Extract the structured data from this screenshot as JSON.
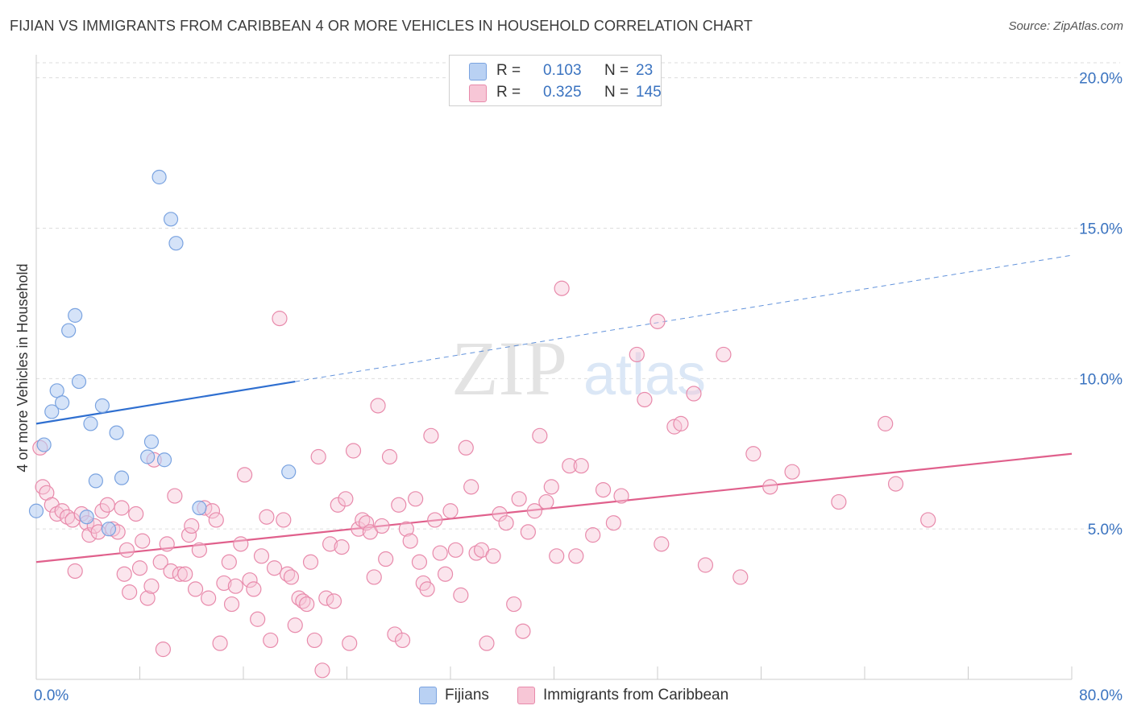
{
  "title": "FIJIAN VS IMMIGRANTS FROM CARIBBEAN 4 OR MORE VEHICLES IN HOUSEHOLD CORRELATION CHART",
  "source": "Source: ZipAtlas.com",
  "watermark": {
    "zip": "ZIP",
    "atlas": "atlas"
  },
  "legend": {
    "rows": [
      {
        "r_label": "R =",
        "r_value": "0.103",
        "n_label": "N =",
        "n_value": "23"
      },
      {
        "r_label": "R =",
        "r_value": "0.325",
        "n_label": "N =",
        "n_value": "145"
      }
    ]
  },
  "bottom_legend": {
    "fijians": "Fijians",
    "caribbean": "Immigrants from Caribbean"
  },
  "colors": {
    "fijian_fill": "#b9d1f3",
    "fijian_stroke": "#7aa3e0",
    "fijian_line": "#2f6fd0",
    "carib_fill": "#f7c6d6",
    "carib_stroke": "#e88aab",
    "carib_line": "#e0608c",
    "tick_text": "#3a73c0",
    "grid": "#dddddd"
  },
  "chart_data": {
    "type": "scatter",
    "title": "FIJIAN VS IMMIGRANTS FROM CARIBBEAN 4 OR MORE VEHICLES IN HOUSEHOLD CORRELATION CHART",
    "xlabel": "",
    "ylabel": "4 or more Vehicles in Household",
    "xlim": [
      0,
      80
    ],
    "ylim": [
      0,
      20.5
    ],
    "x_tick_labels": [
      "0.0%",
      "80.0%"
    ],
    "y_ticks": [
      {
        "value": 5,
        "label": "5.0%"
      },
      {
        "value": 10,
        "label": "10.0%"
      },
      {
        "value": 15,
        "label": "15.0%"
      },
      {
        "value": 20,
        "label": "20.0%"
      }
    ],
    "grid": true,
    "series": [
      {
        "name": "Fijians",
        "r": 0.103,
        "n": 23,
        "trend": {
          "x0": 0,
          "y0": 8.5,
          "x1": 20,
          "y1": 9.9,
          "x_dash_end": 80,
          "y_dash_end": 14.1
        },
        "points": [
          [
            0.0,
            5.6
          ],
          [
            0.6,
            7.8
          ],
          [
            1.2,
            8.9
          ],
          [
            1.6,
            9.6
          ],
          [
            2.0,
            9.2
          ],
          [
            2.5,
            11.6
          ],
          [
            3.0,
            12.1
          ],
          [
            3.3,
            9.9
          ],
          [
            4.2,
            8.5
          ],
          [
            4.6,
            6.6
          ],
          [
            5.1,
            9.1
          ],
          [
            3.9,
            5.4
          ],
          [
            6.2,
            8.2
          ],
          [
            5.6,
            5.0
          ],
          [
            6.6,
            6.7
          ],
          [
            8.6,
            7.4
          ],
          [
            8.9,
            7.9
          ],
          [
            9.5,
            16.7
          ],
          [
            9.9,
            7.3
          ],
          [
            10.4,
            15.3
          ],
          [
            10.8,
            14.5
          ],
          [
            12.6,
            5.7
          ],
          [
            19.5,
            6.9
          ]
        ]
      },
      {
        "name": "Immigrants from Caribbean",
        "r": 0.325,
        "n": 145,
        "trend": {
          "x0": 0,
          "y0": 3.9,
          "x1": 80,
          "y1": 7.5
        },
        "points": [
          [
            0.3,
            7.7
          ],
          [
            0.5,
            6.4
          ],
          [
            0.8,
            6.2
          ],
          [
            1.2,
            5.8
          ],
          [
            1.6,
            5.5
          ],
          [
            2.0,
            5.6
          ],
          [
            2.4,
            5.4
          ],
          [
            2.8,
            5.3
          ],
          [
            3.0,
            3.6
          ],
          [
            3.5,
            5.5
          ],
          [
            3.9,
            5.2
          ],
          [
            4.1,
            4.8
          ],
          [
            4.5,
            5.1
          ],
          [
            4.8,
            4.9
          ],
          [
            5.1,
            5.6
          ],
          [
            5.5,
            5.8
          ],
          [
            5.9,
            5.0
          ],
          [
            6.3,
            4.9
          ],
          [
            6.6,
            5.7
          ],
          [
            6.8,
            3.5
          ],
          [
            7.0,
            4.3
          ],
          [
            7.2,
            2.9
          ],
          [
            7.7,
            5.5
          ],
          [
            8.0,
            3.7
          ],
          [
            8.2,
            4.6
          ],
          [
            8.6,
            2.7
          ],
          [
            8.9,
            3.1
          ],
          [
            9.1,
            7.3
          ],
          [
            9.6,
            3.9
          ],
          [
            9.8,
            1.0
          ],
          [
            10.1,
            4.5
          ],
          [
            10.4,
            3.6
          ],
          [
            10.7,
            6.1
          ],
          [
            11.1,
            3.5
          ],
          [
            11.5,
            3.5
          ],
          [
            11.8,
            4.8
          ],
          [
            12.0,
            5.1
          ],
          [
            12.3,
            3.0
          ],
          [
            12.6,
            4.3
          ],
          [
            13.0,
            5.7
          ],
          [
            13.3,
            2.7
          ],
          [
            13.6,
            5.6
          ],
          [
            13.9,
            5.3
          ],
          [
            14.2,
            1.2
          ],
          [
            14.5,
            3.2
          ],
          [
            14.9,
            3.9
          ],
          [
            15.1,
            2.5
          ],
          [
            15.4,
            3.1
          ],
          [
            15.8,
            4.5
          ],
          [
            16.1,
            6.8
          ],
          [
            16.5,
            3.3
          ],
          [
            16.8,
            3.0
          ],
          [
            17.1,
            2.0
          ],
          [
            17.4,
            4.1
          ],
          [
            17.8,
            5.4
          ],
          [
            18.1,
            1.3
          ],
          [
            18.4,
            3.7
          ],
          [
            18.8,
            12.0
          ],
          [
            19.1,
            5.3
          ],
          [
            19.4,
            3.5
          ],
          [
            19.7,
            3.4
          ],
          [
            20.0,
            1.8
          ],
          [
            20.3,
            2.7
          ],
          [
            20.6,
            2.6
          ],
          [
            20.9,
            2.5
          ],
          [
            21.2,
            3.9
          ],
          [
            21.5,
            1.3
          ],
          [
            21.8,
            7.4
          ],
          [
            22.1,
            0.3
          ],
          [
            22.4,
            2.7
          ],
          [
            22.7,
            4.5
          ],
          [
            23.0,
            2.6
          ],
          [
            23.3,
            5.8
          ],
          [
            23.6,
            4.4
          ],
          [
            23.9,
            6.0
          ],
          [
            24.2,
            1.2
          ],
          [
            24.5,
            7.6
          ],
          [
            24.9,
            5.0
          ],
          [
            25.2,
            5.3
          ],
          [
            25.5,
            5.2
          ],
          [
            25.8,
            4.9
          ],
          [
            26.1,
            3.4
          ],
          [
            26.4,
            9.1
          ],
          [
            26.7,
            5.1
          ],
          [
            27.0,
            4.0
          ],
          [
            27.3,
            7.4
          ],
          [
            27.7,
            1.5
          ],
          [
            28.0,
            5.8
          ],
          [
            28.3,
            1.3
          ],
          [
            28.6,
            5.0
          ],
          [
            28.9,
            4.6
          ],
          [
            29.3,
            6.0
          ],
          [
            29.6,
            3.9
          ],
          [
            29.9,
            3.2
          ],
          [
            30.2,
            3.0
          ],
          [
            30.5,
            8.1
          ],
          [
            30.8,
            5.3
          ],
          [
            31.2,
            4.2
          ],
          [
            31.6,
            3.5
          ],
          [
            32.0,
            5.6
          ],
          [
            32.4,
            4.3
          ],
          [
            32.8,
            2.8
          ],
          [
            33.2,
            7.7
          ],
          [
            33.6,
            6.4
          ],
          [
            34.0,
            4.2
          ],
          [
            34.4,
            4.3
          ],
          [
            34.8,
            1.2
          ],
          [
            35.3,
            4.1
          ],
          [
            35.8,
            5.5
          ],
          [
            36.3,
            5.2
          ],
          [
            36.9,
            2.5
          ],
          [
            37.3,
            6.0
          ],
          [
            37.6,
            1.6
          ],
          [
            38.0,
            4.9
          ],
          [
            38.5,
            5.6
          ],
          [
            38.9,
            8.1
          ],
          [
            39.4,
            5.9
          ],
          [
            39.8,
            6.4
          ],
          [
            40.2,
            4.1
          ],
          [
            40.6,
            13.0
          ],
          [
            41.2,
            7.1
          ],
          [
            41.7,
            4.1
          ],
          [
            42.1,
            7.1
          ],
          [
            43.0,
            4.8
          ],
          [
            43.8,
            6.3
          ],
          [
            44.6,
            5.2
          ],
          [
            45.2,
            6.1
          ],
          [
            46.4,
            10.8
          ],
          [
            47.0,
            9.3
          ],
          [
            48.0,
            11.9
          ],
          [
            48.3,
            4.5
          ],
          [
            49.3,
            8.4
          ],
          [
            49.8,
            8.5
          ],
          [
            50.8,
            9.5
          ],
          [
            51.7,
            3.8
          ],
          [
            53.1,
            10.8
          ],
          [
            54.4,
            3.4
          ],
          [
            55.4,
            7.5
          ],
          [
            56.7,
            6.4
          ],
          [
            58.4,
            6.9
          ],
          [
            62.0,
            5.9
          ],
          [
            65.6,
            8.5
          ],
          [
            66.4,
            6.5
          ],
          [
            68.9,
            5.3
          ]
        ]
      }
    ]
  }
}
